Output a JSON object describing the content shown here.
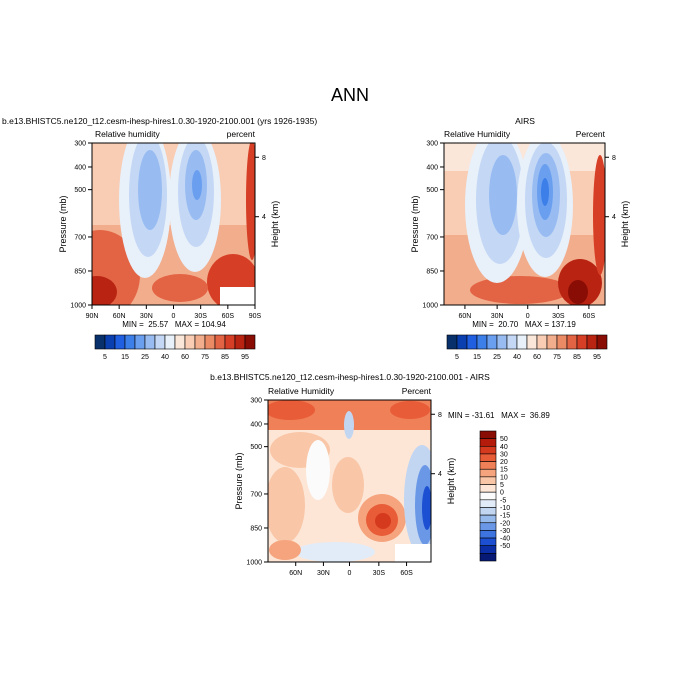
{
  "figure": {
    "title": "ANN"
  },
  "chart_data": [
    {
      "type": "heatmap",
      "title": "b.e13.BHISTC5.ne120_t12.cesm-ihesp-hires1.0.30-1920-2100.001 (yrs 1926-1935)",
      "left_string": "Relative humidity",
      "right_string": "percent",
      "ylabel": "Pressure (mb)",
      "right_axis_label": "Height (km)",
      "x_ticks": [
        "90N",
        "60N",
        "30N",
        "0",
        "30S",
        "60S",
        "90S"
      ],
      "y_ticks": [
        "300",
        "400",
        "500",
        "700",
        "850",
        "1000"
      ],
      "height_ticks": [
        "8",
        "4"
      ],
      "stats": "MIN =  25.57   MAX = 104.94",
      "xlim": [
        "90N",
        "90S"
      ],
      "ylim": [
        1000,
        300
      ],
      "palette": "blue-white-red",
      "colorbar_labels": [
        "5",
        "15",
        "25",
        "40",
        "60",
        "75",
        "85",
        "95"
      ]
    },
    {
      "type": "heatmap",
      "title": "AIRS",
      "left_string": "Relative Humidity",
      "right_string": "Percent",
      "ylabel": "Pressure (mb)",
      "right_axis_label": "Height (km)",
      "x_ticks": [
        "60N",
        "30N",
        "0",
        "30S",
        "60S"
      ],
      "y_ticks": [
        "300",
        "400",
        "500",
        "700",
        "850",
        "1000"
      ],
      "height_ticks": [
        "8",
        "4"
      ],
      "stats": "MIN =  20.70   MAX = 137.19",
      "ylim": [
        1000,
        300
      ],
      "palette": "blue-white-red",
      "colorbar_labels": [
        "5",
        "15",
        "25",
        "40",
        "60",
        "75",
        "85",
        "95"
      ]
    },
    {
      "type": "heatmap",
      "title": "b.e13.BHISTC5.ne120_t12.cesm-ihesp-hires1.0.30-1920-2100.001 - AIRS",
      "left_string": "Relative Humidity",
      "right_string": "Percent",
      "ylabel": "Pressure (mb)",
      "right_axis_label": "Height (km)",
      "x_ticks": [
        "60N",
        "30N",
        "0",
        "30S",
        "60S"
      ],
      "y_ticks": [
        "300",
        "400",
        "500",
        "700",
        "850",
        "1000"
      ],
      "height_ticks": [
        "8",
        "4"
      ],
      "stats": "MIN = -31.61   MAX =  36.89",
      "ylim": [
        1000,
        300
      ],
      "palette": "blue-white-red (difference)",
      "colorbar_labels": [
        "50",
        "40",
        "30",
        "20",
        "15",
        "10",
        "5",
        "0",
        "-5",
        "-10",
        "-15",
        "-20",
        "-30",
        "-40",
        "-50"
      ]
    }
  ],
  "colors": {
    "abs_palette": [
      "#08306b",
      "#0a3fb0",
      "#1f5fe0",
      "#3d7fe8",
      "#6a9ff0",
      "#98bcf2",
      "#c4d8f5",
      "#e8f0fa",
      "#fbe6da",
      "#f8cdb4",
      "#f2ad8c",
      "#eb8b66",
      "#e36444",
      "#d63f25",
      "#b92412",
      "#8a0d05"
    ],
    "diff_palette": [
      "#8a0d05",
      "#b51b0a",
      "#d63a1e",
      "#e85c38",
      "#f08058",
      "#f5a47e",
      "#f9c6a7",
      "#fde6d6",
      "#fbfbfb",
      "#e2ecf8",
      "#c2d6f2",
      "#97baec",
      "#6a98e6",
      "#3e74df",
      "#1c4fd1",
      "#0b2ea6",
      "#061a75"
    ],
    "missing": "#ffffff"
  }
}
